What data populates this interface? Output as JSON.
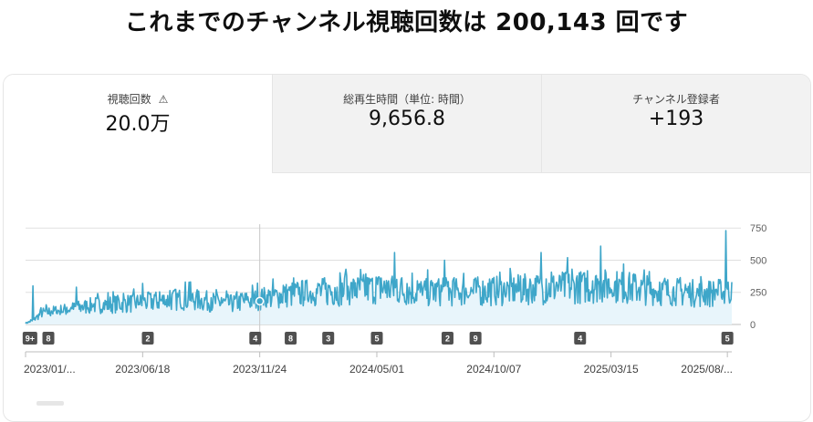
{
  "headline": "これまでのチャンネル視聴回数は 200,143 回です",
  "tabs": [
    {
      "label": "視聴回数",
      "value": "20.0万",
      "warning_icon": "warning-icon",
      "active": true
    },
    {
      "label": "総再生時間（単位: 時間）",
      "value": "9,656.8",
      "active": false
    },
    {
      "label": "チャンネル登録者",
      "value": "+193",
      "active": false
    }
  ],
  "colors": {
    "line": "#3ea6c9",
    "area": "#e8f5fb",
    "badge": "#505050",
    "grid": "#e0e0e0"
  },
  "chart_data": {
    "type": "area",
    "y_ticks": [
      0,
      250,
      500,
      750
    ],
    "ylim": [
      0,
      780
    ],
    "x_tick_labels": [
      "2023/01/...",
      "2023/06/18",
      "2023/11/24",
      "2024/05/01",
      "2024/10/07",
      "2025/03/15",
      "2025/08/..."
    ],
    "x_tick_dates": [
      "2023-01-10",
      "2023-06-18",
      "2023-11-24",
      "2024-05-01",
      "2024-10-07",
      "2025-03-15",
      "2025-08-20"
    ],
    "x_range": [
      "2023-01-10",
      "2025-08-26"
    ],
    "marker_date": "2023-11-24",
    "trend": [
      {
        "x": "2023-01-10",
        "y": 10
      },
      {
        "x": "2023-01-20",
        "y": 30
      },
      {
        "x": "2023-02-01",
        "y": 90
      },
      {
        "x": "2023-03-01",
        "y": 110
      },
      {
        "x": "2023-04-15",
        "y": 150
      },
      {
        "x": "2023-06-18",
        "y": 170
      },
      {
        "x": "2023-08-15",
        "y": 200
      },
      {
        "x": "2023-10-15",
        "y": 160
      },
      {
        "x": "2023-11-24",
        "y": 200
      },
      {
        "x": "2024-01-15",
        "y": 240
      },
      {
        "x": "2024-03-15",
        "y": 260
      },
      {
        "x": "2024-05-01",
        "y": 280
      },
      {
        "x": "2024-07-01",
        "y": 250
      },
      {
        "x": "2024-10-07",
        "y": 260
      },
      {
        "x": "2024-12-15",
        "y": 280
      },
      {
        "x": "2025-03-15",
        "y": 300
      },
      {
        "x": "2025-05-15",
        "y": 260
      },
      {
        "x": "2025-07-15",
        "y": 240
      },
      {
        "x": "2025-08-20",
        "y": 250
      },
      {
        "x": "2025-08-26",
        "y": 260
      }
    ],
    "peaks": [
      {
        "x": "2023-01-20",
        "y": 300
      },
      {
        "x": "2023-03-20",
        "y": 290
      },
      {
        "x": "2023-06-18",
        "y": 320
      },
      {
        "x": "2023-08-20",
        "y": 330
      },
      {
        "x": "2024-03-20",
        "y": 430
      },
      {
        "x": "2024-05-25",
        "y": 560
      },
      {
        "x": "2024-08-01",
        "y": 500
      },
      {
        "x": "2024-12-10",
        "y": 560
      },
      {
        "x": "2025-01-15",
        "y": 520
      },
      {
        "x": "2025-03-01",
        "y": 610
      },
      {
        "x": "2025-04-01",
        "y": 470
      },
      {
        "x": "2025-08-18",
        "y": 730
      },
      {
        "x": "2025-08-26",
        "y": 330
      }
    ],
    "annotations": [
      {
        "x": "2023-01-16",
        "label": "9+"
      },
      {
        "x": "2023-02-10",
        "label": "8"
      },
      {
        "x": "2023-06-25",
        "label": "2"
      },
      {
        "x": "2023-11-18",
        "label": "4"
      },
      {
        "x": "2024-01-05",
        "label": "8"
      },
      {
        "x": "2024-02-25",
        "label": "3"
      },
      {
        "x": "2024-05-01",
        "label": "5"
      },
      {
        "x": "2024-08-05",
        "label": "2"
      },
      {
        "x": "2024-09-12",
        "label": "9"
      },
      {
        "x": "2025-02-01",
        "label": "4"
      },
      {
        "x": "2025-08-20",
        "label": "5"
      }
    ]
  }
}
